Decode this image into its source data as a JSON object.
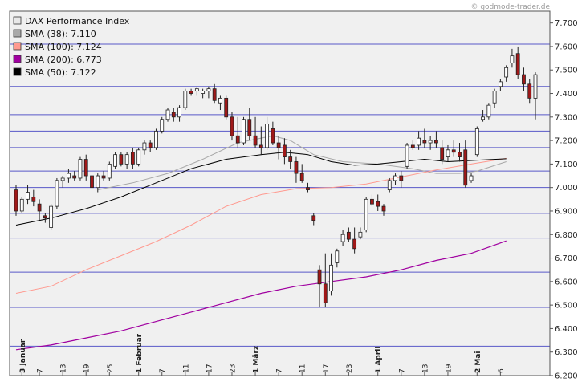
{
  "watermark": "© godmode-trader.de",
  "chart_data": {
    "type": "candlestick",
    "ylim": [
      6200,
      7750
    ],
    "y_ticks": [
      "7.700",
      "7.600",
      "7.500",
      "7.400",
      "7.300",
      "7.200",
      "7.100",
      "7.000",
      "6.900",
      "6.800",
      "6.700",
      "6.600",
      "6.500",
      "6.400",
      "6.300",
      "6.200"
    ],
    "y_tick_values": [
      7700,
      7600,
      7500,
      7400,
      7300,
      7200,
      7100,
      7000,
      6900,
      6800,
      6700,
      6600,
      6500,
      6400,
      6300,
      6200
    ],
    "horizontal_lines": [
      7610,
      7430,
      7310,
      7240,
      7170,
      7070,
      7000,
      6890,
      6785,
      6640,
      6490,
      6325
    ],
    "x_labels": [
      {
        "i": 1,
        "label": "3 Januar",
        "bold": true
      },
      {
        "i": 4,
        "label": "7"
      },
      {
        "i": 8,
        "label": "13"
      },
      {
        "i": 12,
        "label": "19"
      },
      {
        "i": 16,
        "label": "25"
      },
      {
        "i": 21,
        "label": "1 Februar",
        "bold": true
      },
      {
        "i": 25,
        "label": "7"
      },
      {
        "i": 29,
        "label": "11"
      },
      {
        "i": 33,
        "label": "17"
      },
      {
        "i": 37,
        "label": "23"
      },
      {
        "i": 41,
        "label": "1 März",
        "bold": true
      },
      {
        "i": 45,
        "label": "7"
      },
      {
        "i": 49,
        "label": "11"
      },
      {
        "i": 53,
        "label": "17"
      },
      {
        "i": 57,
        "label": "23"
      },
      {
        "i": 62,
        "label": "1 April",
        "bold": true
      },
      {
        "i": 66,
        "label": "7"
      },
      {
        "i": 70,
        "label": "13"
      },
      {
        "i": 74,
        "label": "19"
      },
      {
        "i": 79,
        "label": "2 Mai",
        "bold": true
      },
      {
        "i": 83,
        "label": "6"
      }
    ],
    "legend": [
      {
        "label": "DAX Performance Index",
        "color": "#e8e8e8"
      },
      {
        "label": "SMA (38): 7.110",
        "color": "#a8a8a8"
      },
      {
        "label": "SMA (100): 7.124",
        "color": "#ff9a90"
      },
      {
        "label": "SMA (200): 6.773",
        "color": "#a000a0"
      },
      {
        "label": "SMA (50): 7.122",
        "color": "#000000"
      }
    ],
    "candles": [
      [
        6990,
        7010,
        6880,
        6900
      ],
      [
        6900,
        6960,
        6890,
        6950
      ],
      [
        6950,
        7010,
        6930,
        6980
      ],
      [
        6960,
        6990,
        6920,
        6940
      ],
      [
        6930,
        6950,
        6860,
        6900
      ],
      [
        6880,
        6890,
        6850,
        6870
      ],
      [
        6830,
        6930,
        6820,
        6920
      ],
      [
        6920,
        7040,
        6910,
        7030
      ],
      [
        7030,
        7050,
        7000,
        7040
      ],
      [
        7040,
        7080,
        7020,
        7060
      ],
      [
        7050,
        7070,
        7030,
        7040
      ],
      [
        7040,
        7130,
        7030,
        7120
      ],
      [
        7120,
        7140,
        7030,
        7050
      ],
      [
        7050,
        7080,
        6980,
        7000
      ],
      [
        7000,
        7060,
        6980,
        7050
      ],
      [
        7050,
        7070,
        7030,
        7040
      ],
      [
        7040,
        7110,
        7030,
        7100
      ],
      [
        7090,
        7150,
        7080,
        7140
      ],
      [
        7140,
        7150,
        7090,
        7100
      ],
      [
        7100,
        7150,
        7080,
        7140
      ],
      [
        7150,
        7170,
        7080,
        7100
      ],
      [
        7100,
        7170,
        7090,
        7160
      ],
      [
        7160,
        7200,
        7140,
        7190
      ],
      [
        7190,
        7200,
        7150,
        7170
      ],
      [
        7170,
        7250,
        7160,
        7240
      ],
      [
        7240,
        7300,
        7230,
        7290
      ],
      [
        7290,
        7340,
        7280,
        7330
      ],
      [
        7320,
        7340,
        7280,
        7300
      ],
      [
        7300,
        7350,
        7280,
        7340
      ],
      [
        7340,
        7420,
        7330,
        7410
      ],
      [
        7410,
        7420,
        7390,
        7400
      ],
      [
        7410,
        7430,
        7390,
        7420
      ],
      [
        7400,
        7420,
        7380,
        7410
      ],
      [
        7410,
        7430,
        7380,
        7420
      ],
      [
        7420,
        7440,
        7360,
        7370
      ],
      [
        7360,
        7390,
        7330,
        7380
      ],
      [
        7380,
        7390,
        7290,
        7300
      ],
      [
        7300,
        7320,
        7200,
        7220
      ],
      [
        7220,
        7300,
        7170,
        7190
      ],
      [
        7190,
        7300,
        7180,
        7290
      ],
      [
        7290,
        7340,
        7200,
        7220
      ],
      [
        7220,
        7300,
        7170,
        7180
      ],
      [
        7180,
        7260,
        7140,
        7170
      ],
      [
        7170,
        7300,
        7160,
        7270
      ],
      [
        7250,
        7280,
        7180,
        7190
      ],
      [
        7190,
        7220,
        7120,
        7170
      ],
      [
        7180,
        7210,
        7100,
        7130
      ],
      [
        7130,
        7160,
        7080,
        7110
      ],
      [
        7110,
        7130,
        7020,
        7060
      ],
      [
        7060,
        7100,
        7020,
        7030
      ],
      [
        7000,
        7020,
        6980,
        6990
      ],
      [
        6880,
        6890,
        6840,
        6860
      ],
      [
        6650,
        6670,
        6490,
        6590
      ],
      [
        6590,
        6720,
        6490,
        6510
      ],
      [
        6560,
        6720,
        6540,
        6670
      ],
      [
        6680,
        6740,
        6660,
        6730
      ],
      [
        6770,
        6820,
        6750,
        6800
      ],
      [
        6810,
        6830,
        6770,
        6780
      ],
      [
        6780,
        6830,
        6720,
        6740
      ],
      [
        6790,
        6830,
        6780,
        6810
      ],
      [
        6820,
        6960,
        6810,
        6950
      ],
      [
        6950,
        6970,
        6920,
        6930
      ],
      [
        6940,
        6970,
        6900,
        6920
      ],
      [
        6920,
        6930,
        6880,
        6900
      ],
      [
        6990,
        7040,
        6980,
        7030
      ],
      [
        7030,
        7060,
        7010,
        7050
      ],
      [
        7050,
        7070,
        7000,
        7030
      ],
      [
        7090,
        7190,
        7080,
        7180
      ],
      [
        7180,
        7200,
        7160,
        7170
      ],
      [
        7180,
        7240,
        7160,
        7210
      ],
      [
        7200,
        7250,
        7170,
        7190
      ],
      [
        7190,
        7220,
        7160,
        7200
      ],
      [
        7200,
        7240,
        7170,
        7190
      ],
      [
        7170,
        7200,
        7100,
        7120
      ],
      [
        7130,
        7180,
        7110,
        7160
      ],
      [
        7160,
        7200,
        7130,
        7150
      ],
      [
        7150,
        7190,
        7110,
        7130
      ],
      [
        7160,
        7200,
        7000,
        7010
      ],
      [
        7030,
        7060,
        7020,
        7050
      ],
      [
        7140,
        7260,
        7130,
        7250
      ],
      [
        7290,
        7330,
        7280,
        7300
      ],
      [
        7300,
        7360,
        7290,
        7350
      ],
      [
        7360,
        7420,
        7340,
        7410
      ],
      [
        7430,
        7460,
        7410,
        7450
      ],
      [
        7470,
        7520,
        7450,
        7510
      ],
      [
        7530,
        7590,
        7510,
        7560
      ],
      [
        7570,
        7600,
        7460,
        7480
      ],
      [
        7480,
        7510,
        7410,
        7440
      ],
      [
        7440,
        7460,
        7360,
        7380
      ],
      [
        7380,
        7490,
        7290,
        7480
      ]
    ],
    "series": [
      {
        "name": "SMA (38)",
        "color": "#a8a8a8",
        "width": 1,
        "points": [
          [
            14,
            6990
          ],
          [
            20,
            7020
          ],
          [
            26,
            7060
          ],
          [
            32,
            7120
          ],
          [
            38,
            7190
          ],
          [
            44,
            7220
          ],
          [
            47,
            7200
          ],
          [
            51,
            7140
          ],
          [
            56,
            7110
          ],
          [
            62,
            7100
          ],
          [
            68,
            7080
          ],
          [
            72,
            7060
          ],
          [
            76,
            7060
          ],
          [
            79,
            7070
          ],
          [
            84,
            7110
          ]
        ]
      },
      {
        "name": "SMA (100)",
        "color": "#ff9a90",
        "width": 1,
        "points": [
          [
            0,
            6550
          ],
          [
            6,
            6580
          ],
          [
            12,
            6650
          ],
          [
            18,
            6710
          ],
          [
            24,
            6770
          ],
          [
            30,
            6840
          ],
          [
            36,
            6920
          ],
          [
            42,
            6970
          ],
          [
            48,
            6995
          ],
          [
            54,
            7000
          ],
          [
            60,
            7015
          ],
          [
            66,
            7045
          ],
          [
            72,
            7075
          ],
          [
            78,
            7100
          ],
          [
            84,
            7124
          ]
        ]
      },
      {
        "name": "SMA (200)",
        "color": "#a000a0",
        "width": 1.2,
        "points": [
          [
            0,
            6310
          ],
          [
            6,
            6330
          ],
          [
            12,
            6360
          ],
          [
            18,
            6390
          ],
          [
            24,
            6430
          ],
          [
            30,
            6470
          ],
          [
            36,
            6510
          ],
          [
            42,
            6550
          ],
          [
            48,
            6580
          ],
          [
            54,
            6600
          ],
          [
            60,
            6620
          ],
          [
            66,
            6650
          ],
          [
            72,
            6690
          ],
          [
            78,
            6720
          ],
          [
            84,
            6773
          ]
        ]
      },
      {
        "name": "SMA (50)",
        "color": "#000000",
        "width": 1,
        "points": [
          [
            0,
            6840
          ],
          [
            6,
            6870
          ],
          [
            12,
            6910
          ],
          [
            18,
            6960
          ],
          [
            24,
            7020
          ],
          [
            30,
            7080
          ],
          [
            36,
            7120
          ],
          [
            42,
            7140
          ],
          [
            46,
            7150
          ],
          [
            50,
            7140
          ],
          [
            54,
            7110
          ],
          [
            58,
            7095
          ],
          [
            62,
            7100
          ],
          [
            66,
            7110
          ],
          [
            70,
            7120
          ],
          [
            74,
            7110
          ],
          [
            78,
            7115
          ],
          [
            84,
            7122
          ]
        ]
      }
    ]
  }
}
